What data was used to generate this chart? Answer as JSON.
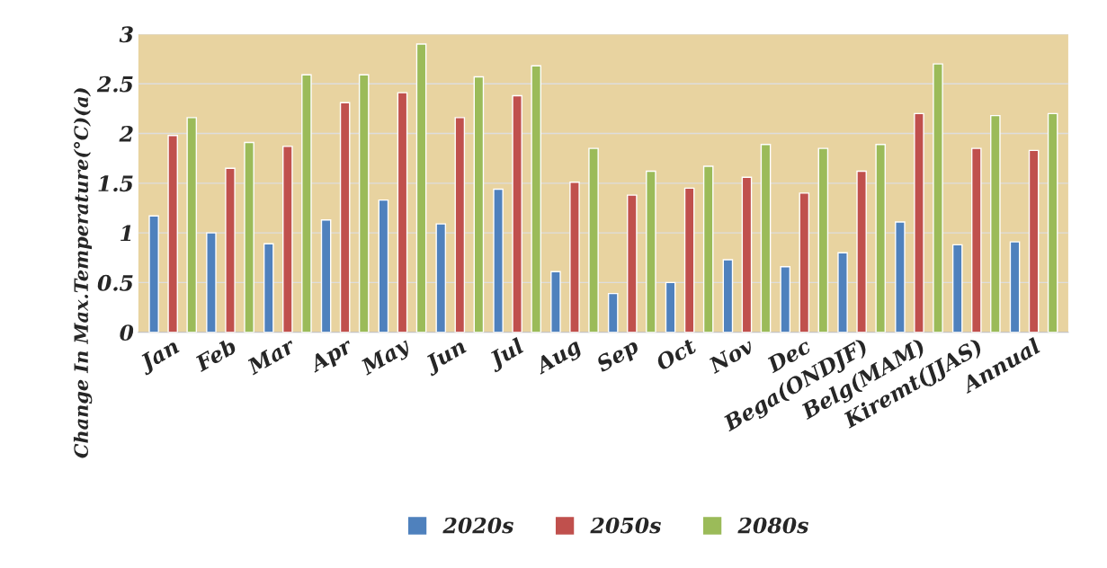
{
  "chart_data": {
    "type": "bar",
    "ylabel": "Change In Max.Temperature(°C)(a)",
    "categories": [
      "Jan",
      "Feb",
      "Mar",
      "Apr",
      "May",
      "Jun",
      "Jul",
      "Aug",
      "Sep",
      "Oct",
      "Nov",
      "Dec",
      "Bega(ONDJF)",
      "Belg(MAM)",
      "Kiremt(JJAS)",
      "Annual"
    ],
    "series": [
      {
        "name": "2020s",
        "color": "#4f81bd",
        "values": [
          1.17,
          1.0,
          0.89,
          1.13,
          1.33,
          1.09,
          1.44,
          0.61,
          0.39,
          0.5,
          0.73,
          0.66,
          0.8,
          1.11,
          0.88,
          0.91
        ]
      },
      {
        "name": "2050s",
        "color": "#c0504d",
        "values": [
          1.98,
          1.65,
          1.87,
          2.31,
          2.41,
          2.16,
          2.38,
          1.51,
          1.38,
          1.45,
          1.56,
          1.4,
          1.62,
          2.2,
          1.85,
          1.83
        ]
      },
      {
        "name": "2080s",
        "color": "#9bbb59",
        "values": [
          2.16,
          1.91,
          2.59,
          2.59,
          2.9,
          2.57,
          2.68,
          1.85,
          1.62,
          1.67,
          1.89,
          1.85,
          1.89,
          2.7,
          2.18,
          2.2
        ]
      }
    ],
    "ylim": [
      0,
      3
    ],
    "yticks": [
      0,
      0.5,
      1,
      1.5,
      2,
      2.5,
      3
    ],
    "grid": "y",
    "legend": "bottom"
  }
}
